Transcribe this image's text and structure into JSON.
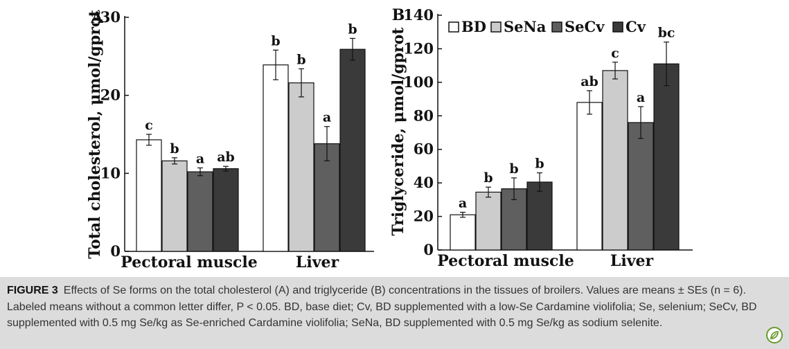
{
  "chart_data": [
    {
      "type": "bar",
      "panel": "A",
      "ylabel": "Total cholesterol, μmol/gprot",
      "ylim": [
        0,
        30
      ],
      "yticks": [
        0,
        10,
        20,
        30
      ],
      "categories": [
        "Pectoral muscle",
        "Liver"
      ],
      "series": [
        {
          "name": "BD",
          "color": "#ffffff",
          "values": [
            14.3,
            23.9
          ],
          "errors": [
            0.7,
            1.9
          ],
          "labels": [
            "c",
            "b"
          ]
        },
        {
          "name": "SeNa",
          "color": "#cccccc",
          "values": [
            11.6,
            21.6
          ],
          "errors": [
            0.4,
            1.8
          ],
          "labels": [
            "b",
            "b"
          ]
        },
        {
          "name": "SeCv",
          "color": "#5f5f5f",
          "values": [
            10.2,
            13.8
          ],
          "errors": [
            0.5,
            2.2
          ],
          "labels": [
            "a",
            "a"
          ]
        },
        {
          "name": "Cv",
          "color": "#3a3a3a",
          "values": [
            10.6,
            25.9
          ],
          "errors": [
            0.3,
            1.4
          ],
          "labels": [
            "ab",
            "b"
          ]
        }
      ],
      "grid": false,
      "legend": "none"
    },
    {
      "type": "bar",
      "panel": "B",
      "ylabel": "Triglyceride, μmol/gprot",
      "ylim": [
        0,
        140
      ],
      "yticks": [
        0,
        20,
        40,
        60,
        80,
        100,
        120,
        140
      ],
      "categories": [
        "Pectoral muscle",
        "Liver"
      ],
      "series": [
        {
          "name": "BD",
          "color": "#ffffff",
          "values": [
            21.0,
            88.0
          ],
          "errors": [
            1.5,
            7.0
          ],
          "labels": [
            "a",
            "ab"
          ]
        },
        {
          "name": "SeNa",
          "color": "#cccccc",
          "values": [
            34.5,
            107.0
          ],
          "errors": [
            3.0,
            5.0
          ],
          "labels": [
            "b",
            "c"
          ]
        },
        {
          "name": "SeCv",
          "color": "#5f5f5f",
          "values": [
            36.5,
            76.0
          ],
          "errors": [
            6.5,
            9.5
          ],
          "labels": [
            "b",
            "a"
          ]
        },
        {
          "name": "Cv",
          "color": "#3a3a3a",
          "values": [
            40.5,
            111.0
          ],
          "errors": [
            5.5,
            13.0
          ],
          "labels": [
            "b",
            "bc"
          ]
        }
      ],
      "grid": false,
      "legend": "top"
    }
  ],
  "caption": {
    "label": "FIGURE 3",
    "text": "Effects of Se forms on the total cholesterol (A) and triglyceride (B) concentrations in the tissues of broilers. Values are means ± SEs (n = 6). Labeled means without a common letter differ, P < 0.05. BD, base diet; Cv, BD supplemented with a low-Se Cardamine violifolia; Se, selenium; SeCv, BD supplemented with 0.5 mg Se/kg as Se-enriched Cardamine violifolia; SeNa, BD supplemented with 0.5 mg Se/kg as sodium selenite."
  },
  "badge": {
    "icon": "leaf-badge-icon",
    "color": "#6a9a2e"
  }
}
